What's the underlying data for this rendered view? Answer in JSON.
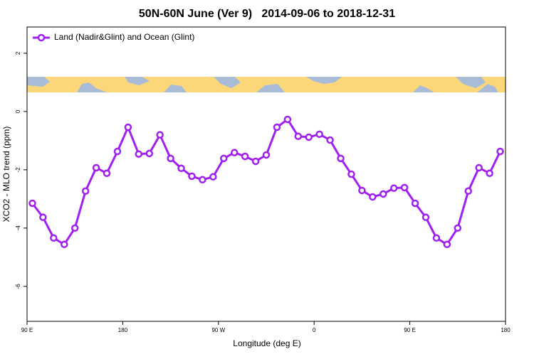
{
  "chart_data": {
    "type": "line",
    "title": "50N-60N June (Ver 9)   2014-09-06 to 2018-12-31",
    "x_label": "Longitude (deg E)",
    "y_label": "XCO2 - MLO trend (ppm)",
    "x": [
      95,
      105,
      115,
      125,
      135,
      145,
      155,
      165,
      175,
      185,
      195,
      205,
      215,
      225,
      235,
      245,
      255,
      265,
      275,
      285,
      295,
      305,
      315,
      325,
      335,
      345,
      355,
      365,
      375,
      385,
      395,
      405,
      415,
      425,
      435,
      445,
      455,
      465,
      475,
      485,
      495,
      505,
      515,
      525,
      535
    ],
    "series": [
      {
        "name": "Land (Nadir&Glint) and Ocean (Glint)",
        "color": "#a020f0",
        "values": [
          -3.15,
          -3.63,
          -4.34,
          -4.56,
          -4.0,
          -2.73,
          -1.93,
          -2.12,
          -1.37,
          -0.54,
          -1.46,
          -1.44,
          -0.8,
          -1.61,
          -1.95,
          -2.22,
          -2.34,
          -2.24,
          -1.61,
          -1.41,
          -1.54,
          -1.71,
          -1.49,
          -0.54,
          -0.27,
          -0.85,
          -0.88,
          -0.78,
          -0.98,
          -1.61,
          -2.15,
          -2.71,
          -2.93,
          -2.83,
          -2.63,
          -2.61,
          -3.15,
          -3.63,
          -4.34,
          -4.56,
          -4.0,
          -2.73,
          -1.93,
          -2.12,
          -1.37
        ]
      }
    ],
    "xlim": [
      90,
      540
    ],
    "xticks": [
      {
        "value": 90,
        "label": "90 E"
      },
      180,
      {
        "value": 270,
        "label": "90 W"
      },
      {
        "value": 360,
        "label": "0"
      },
      {
        "value": 450,
        "label": "90 E"
      },
      {
        "value": 540,
        "label": "180"
      }
    ],
    "ylim": [
      -7.2,
      2.9
    ],
    "yticks": [
      2,
      0,
      -2,
      -4,
      -6
    ],
    "legend": "top left"
  }
}
